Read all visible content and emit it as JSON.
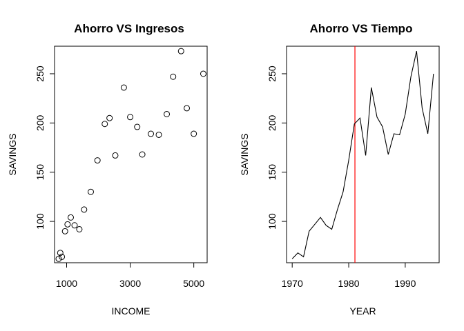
{
  "chart_data": [
    {
      "type": "scatter",
      "title": "Ahorro VS Ingresos",
      "xlabel": "INCOME",
      "ylabel": "SAVINGS",
      "xlim": [
        620,
        5420
      ],
      "ylim": [
        58,
        278
      ],
      "xticks": [
        1000,
        3000,
        5000
      ],
      "yticks": [
        100,
        150,
        200,
        250
      ],
      "grid": false,
      "marker": "open-circle",
      "x": [
        750,
        800,
        850,
        950,
        1030,
        1130,
        1250,
        1400,
        1550,
        1760,
        1970,
        2200,
        2350,
        2530,
        2800,
        3000,
        3220,
        3380,
        3650,
        3900,
        4150,
        4350,
        4600,
        4780,
        5000,
        5300
      ],
      "y": [
        62,
        68,
        64,
        90,
        97,
        104,
        96,
        92,
        112,
        130,
        162,
        199,
        205,
        167,
        236,
        206,
        196,
        168,
        189,
        188,
        209,
        247,
        273,
        215,
        189,
        250
      ]
    },
    {
      "type": "line",
      "title": "Ahorro VS Tiempo",
      "xlabel": "YEAR",
      "ylabel": "SAVINGS",
      "xlim": [
        1969,
        1996
      ],
      "ylim": [
        58,
        278
      ],
      "xticks": [
        1970,
        1980,
        1990
      ],
      "yticks": [
        100,
        150,
        200,
        250
      ],
      "grid": false,
      "line_color": "#000000",
      "x": [
        1970,
        1971,
        1972,
        1973,
        1974,
        1975,
        1976,
        1977,
        1978,
        1979,
        1980,
        1981,
        1982,
        1983,
        1984,
        1985,
        1986,
        1987,
        1988,
        1989,
        1990,
        1991,
        1992,
        1993,
        1994,
        1995
      ],
      "y": [
        62,
        68,
        64,
        90,
        97,
        104,
        96,
        92,
        112,
        130,
        162,
        199,
        205,
        167,
        236,
        206,
        196,
        168,
        189,
        188,
        209,
        247,
        273,
        215,
        189,
        250
      ],
      "vline": {
        "x": 1981.1,
        "color": "#ff0000"
      }
    }
  ]
}
